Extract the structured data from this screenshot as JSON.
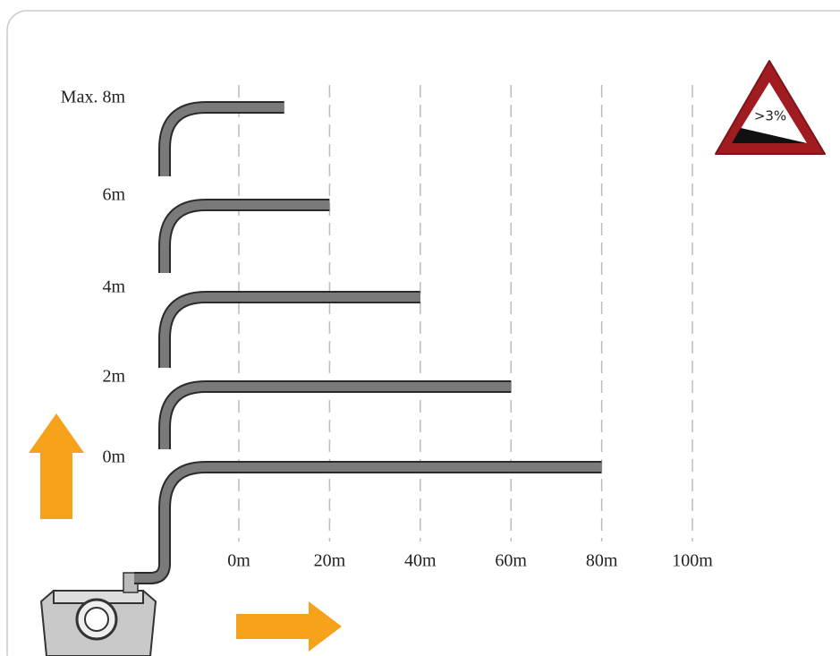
{
  "chart_data": {
    "type": "pipe",
    "categories": [
      "Max. 8m",
      "6m",
      "4m",
      "2m",
      "0m"
    ],
    "values": [
      10,
      20,
      40,
      60,
      80
    ],
    "xlim": [
      0,
      100
    ],
    "xticks": [
      {
        "value": 0,
        "label": "0m"
      },
      {
        "value": 20,
        "label": "20m"
      },
      {
        "value": 40,
        "label": "40m"
      },
      {
        "value": 60,
        "label": "60m"
      },
      {
        "value": 80,
        "label": "80m"
      },
      {
        "value": 100,
        "label": "100m"
      }
    ],
    "grid": true,
    "color": "#7a7a7a",
    "sign": ">3%"
  }
}
